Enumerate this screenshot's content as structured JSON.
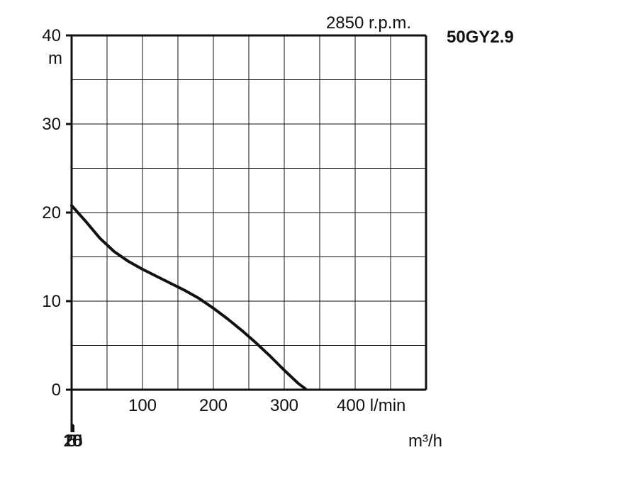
{
  "chart_data": {
    "type": "line",
    "title": "",
    "header": {
      "speed": "2850 r.p.m.",
      "model": "50GY2.9"
    },
    "ylabel": "",
    "y_unit": "m",
    "ylim": [
      0,
      40
    ],
    "y_ticks": [
      "0",
      "10",
      "20",
      "30",
      "40"
    ],
    "x_flow_lpm": {
      "xlim": [
        0,
        500
      ],
      "tick_labels": [
        "100",
        "200",
        "300",
        "400 l/min"
      ],
      "tick_values": [
        100,
        200,
        300,
        400
      ]
    },
    "x_flow_m3h": {
      "xlim": [
        0,
        30
      ],
      "tick_labels": [
        "0",
        "5",
        "10",
        "15",
        "20",
        "25"
      ],
      "tick_values": [
        0,
        5,
        10,
        15,
        20,
        25
      ],
      "unit": "m³/h"
    },
    "grid": true,
    "series": [
      {
        "x": [
          0,
          20,
          40,
          60,
          80,
          100,
          120,
          140,
          160,
          180,
          200,
          220,
          240,
          260,
          280,
          300,
          320,
          330
        ],
        "y": [
          20.8,
          19.0,
          17.1,
          15.6,
          14.5,
          13.6,
          12.8,
          12.0,
          11.2,
          10.3,
          9.2,
          8.0,
          6.7,
          5.3,
          3.8,
          2.2,
          0.7,
          0.1
        ],
        "color": "#111111"
      }
    ]
  }
}
